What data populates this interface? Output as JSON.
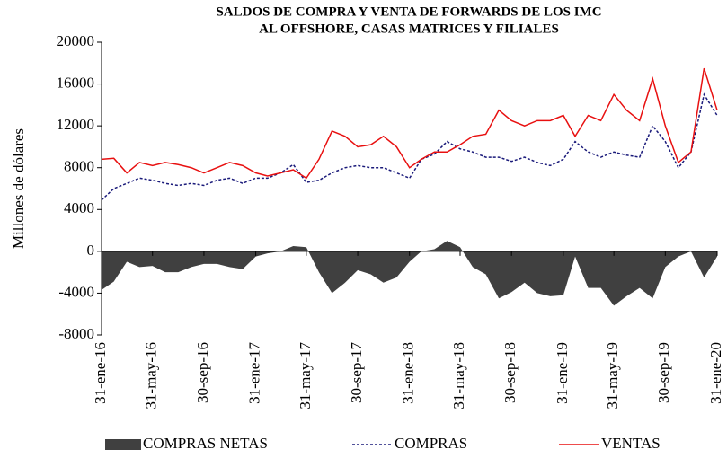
{
  "chart_data": {
    "type": "line",
    "title": [
      "SALDOS DE COMPRA Y VENTA DE FORWARDS DE LOS IMC",
      "AL OFFSHORE, CASAS MATRICES Y FILIALES"
    ],
    "y_label": "Millones de dólares",
    "x": [
      "2016-01-31",
      "2016-02-29",
      "2016-03-31",
      "2016-04-30",
      "2016-05-31",
      "2016-06-30",
      "2016-07-31",
      "2016-08-31",
      "2016-09-30",
      "2016-10-31",
      "2016-11-30",
      "2016-12-31",
      "2017-01-31",
      "2017-02-28",
      "2017-03-31",
      "2017-04-30",
      "2017-05-31",
      "2017-06-30",
      "2017-07-31",
      "2017-08-31",
      "2017-09-30",
      "2017-10-31",
      "2017-11-30",
      "2017-12-31",
      "2018-01-31",
      "2018-02-28",
      "2018-03-31",
      "2018-04-30",
      "2018-05-31",
      "2018-06-30",
      "2018-07-31",
      "2018-08-31",
      "2018-09-30",
      "2018-10-31",
      "2018-11-30",
      "2018-12-31",
      "2019-01-31",
      "2019-02-28",
      "2019-03-31",
      "2019-04-30",
      "2019-05-31",
      "2019-06-30",
      "2019-07-31",
      "2019-08-31",
      "2019-09-30",
      "2019-10-31",
      "2019-11-30",
      "2019-12-31",
      "2020-01-31"
    ],
    "series": [
      {
        "name": "COMPRAS NETAS",
        "kind": "area",
        "color": "#404040",
        "values": [
          -3700,
          -2900,
          -1000,
          -1500,
          -1400,
          -2000,
          -2000,
          -1500,
          -1200,
          -1200,
          -1500,
          -1700,
          -500,
          -200,
          0,
          500,
          400,
          -2000,
          -4000,
          -3000,
          -1800,
          -2200,
          -3000,
          -2500,
          -1000,
          0,
          200,
          1000,
          400,
          -1500,
          -2200,
          -4500,
          -3900,
          -3000,
          -4000,
          -4300,
          -4200,
          -500,
          -3500,
          -3500,
          -5200,
          -4300,
          -3500,
          -4500,
          -1500,
          -500,
          0,
          -2500,
          -500
        ]
      },
      {
        "name": "COMPRAS",
        "kind": "dashed",
        "color": "#1a1a7a",
        "values": [
          4900,
          6000,
          6500,
          7000,
          6800,
          6500,
          6300,
          6500,
          6300,
          6800,
          7000,
          6500,
          7000,
          7000,
          7500,
          8300,
          6600,
          6800,
          7500,
          8000,
          8200,
          8000,
          8000,
          7500,
          7000,
          8800,
          9300,
          10500,
          9800,
          9500,
          9000,
          9000,
          8600,
          9000,
          8500,
          8200,
          8800,
          10500,
          9500,
          9000,
          9500,
          9200,
          9000,
          12000,
          10500,
          8000,
          9500,
          15000,
          13000
        ]
      },
      {
        "name": "VENTAS",
        "kind": "solid",
        "color": "#e81010",
        "values": [
          8800,
          8900,
          7500,
          8500,
          8200,
          8500,
          8300,
          8000,
          7500,
          8000,
          8500,
          8200,
          7500,
          7200,
          7500,
          7800,
          7000,
          8800,
          11500,
          11000,
          10000,
          10200,
          11000,
          10000,
          8000,
          8800,
          9500,
          9500,
          10200,
          11000,
          11200,
          13500,
          12500,
          12000,
          12500,
          12500,
          13000,
          11000,
          13000,
          12500,
          15000,
          13500,
          12500,
          16500,
          12000,
          8500,
          9500,
          17500,
          13500
        ]
      }
    ],
    "xlim": [
      "2016-01-31",
      "2020-01-31"
    ],
    "xticks": [
      {
        "value": "2016-01-31",
        "label": "31-ene-16"
      },
      {
        "value": "2016-05-31",
        "label": "31-may-16"
      },
      {
        "value": "2016-09-30",
        "label": "30-sep-16"
      },
      {
        "value": "2017-01-31",
        "label": "31-ene-17"
      },
      {
        "value": "2017-05-31",
        "label": "31-may-17"
      },
      {
        "value": "2017-09-30",
        "label": "30-sep-17"
      },
      {
        "value": "2018-01-31",
        "label": "31-ene-18"
      },
      {
        "value": "2018-05-31",
        "label": "31-may-18"
      },
      {
        "value": "2018-09-30",
        "label": "30-sep-18"
      },
      {
        "value": "2019-01-31",
        "label": "31-ene-19"
      },
      {
        "value": "2019-05-31",
        "label": "31-may-19"
      },
      {
        "value": "2019-09-30",
        "label": "30-sep-19"
      },
      {
        "value": "2020-01-31",
        "label": "31-ene-20"
      }
    ],
    "ylim": [
      -8000,
      20000
    ],
    "yticks": [
      -8000,
      -4000,
      0,
      4000,
      8000,
      12000,
      16000,
      20000
    ],
    "grid": false,
    "legend": "bottom"
  }
}
